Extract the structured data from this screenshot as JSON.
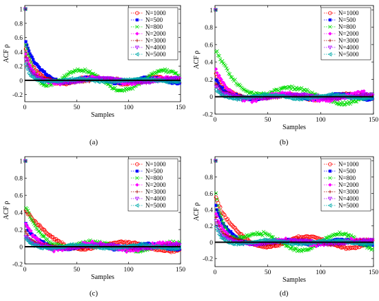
{
  "chart_data": [
    {
      "type": "scatter",
      "panel_label": "(a)",
      "xlabel": "Samples",
      "ylabel": "ACF ρ",
      "xlim": [
        0,
        150
      ],
      "ylim": [
        -0.3,
        1.05
      ],
      "xticks": [
        "0",
        "50",
        "100",
        "150"
      ],
      "yticks": [
        "1",
        "0.8",
        "0.6",
        "0.4",
        "0.2",
        "0",
        "-0.2"
      ],
      "ytick_values": [
        1,
        0.8,
        0.6,
        0.4,
        0.2,
        0,
        -0.2
      ],
      "xtick_values": [
        0,
        50,
        100,
        150
      ],
      "legend": "top-right",
      "zero_line": true,
      "series": [
        {
          "name": "N=1000",
          "color": "#ff0000",
          "marker": "circle",
          "start": 0.5,
          "decay": 7,
          "wave_amp": 0.05,
          "wave_period": 60,
          "wave_phase": 1.0,
          "noise": 0.02
        },
        {
          "name": "N=500",
          "color": "#0000ff",
          "marker": "square",
          "start": 0.6,
          "decay": 10,
          "wave_amp": 0.04,
          "wave_period": 55,
          "wave_phase": 0.5,
          "noise": 0.02
        },
        {
          "name": "N=800",
          "color": "#00dd00",
          "marker": "x",
          "start": 0.55,
          "decay": 9,
          "wave_amp": 0.14,
          "wave_period": 80,
          "wave_phase": 3.6,
          "noise": 0.03
        },
        {
          "name": "N=2000",
          "color": "#ff00ff",
          "marker": "diamond",
          "start": 0.45,
          "decay": 6,
          "wave_amp": 0.04,
          "wave_period": 70,
          "wave_phase": 2.0,
          "noise": 0.03
        },
        {
          "name": "N=3000",
          "color": "#aa0000",
          "marker": "plus",
          "start": 0.4,
          "decay": 5,
          "wave_amp": 0.03,
          "wave_period": 65,
          "wave_phase": 0.2,
          "noise": 0.02
        },
        {
          "name": "N=4000",
          "color": "#aa00ff",
          "marker": "triangle-down",
          "start": 0.35,
          "decay": 5,
          "wave_amp": 0.03,
          "wave_period": 75,
          "wave_phase": 1.5,
          "noise": 0.02
        },
        {
          "name": "N=5000",
          "color": "#00aaaa",
          "marker": "triangle-left",
          "start": 0.3,
          "decay": 4,
          "wave_amp": 0.02,
          "wave_period": 60,
          "wave_phase": 2.5,
          "noise": 0.02
        }
      ]
    },
    {
      "type": "scatter",
      "panel_label": "(b)",
      "xlabel": "Samples",
      "ylabel": "ACF ρ",
      "xlim": [
        0,
        150
      ],
      "ylim": [
        -0.2,
        1.05
      ],
      "xticks": [
        "0",
        "50",
        "100",
        "150"
      ],
      "yticks": [
        "1",
        "0.8",
        "0.6",
        "0.4",
        "0.2",
        "0",
        "-0.2"
      ],
      "ytick_values": [
        1,
        0.8,
        0.6,
        0.4,
        0.2,
        0,
        -0.2
      ],
      "xtick_values": [
        0,
        50,
        100,
        150
      ],
      "legend": "top-right",
      "zero_line": true,
      "series": [
        {
          "name": "N=1000",
          "color": "#ff0000",
          "marker": "circle",
          "start": 0.3,
          "decay": 8,
          "wave_amp": 0.03,
          "wave_period": 60,
          "wave_phase": 1.0,
          "noise": 0.02
        },
        {
          "name": "N=500",
          "color": "#0000ff",
          "marker": "square",
          "start": 0.25,
          "decay": 6,
          "wave_amp": 0.03,
          "wave_period": 55,
          "wave_phase": 0.5,
          "noise": 0.02
        },
        {
          "name": "N=800",
          "color": "#00dd00",
          "marker": "x",
          "start": 0.55,
          "decay": 22,
          "wave_amp": 0.08,
          "wave_period": 90,
          "wave_phase": 2.6,
          "noise": 0.03
        },
        {
          "name": "N=2000",
          "color": "#ff00ff",
          "marker": "diamond",
          "start": 0.35,
          "decay": 9,
          "wave_amp": 0.04,
          "wave_period": 70,
          "wave_phase": 2.0,
          "noise": 0.04
        },
        {
          "name": "N=3000",
          "color": "#aa0000",
          "marker": "plus",
          "start": 0.2,
          "decay": 5,
          "wave_amp": 0.02,
          "wave_period": 65,
          "wave_phase": 0.2,
          "noise": 0.02
        },
        {
          "name": "N=4000",
          "color": "#aa00ff",
          "marker": "triangle-down",
          "start": 0.15,
          "decay": 5,
          "wave_amp": 0.02,
          "wave_period": 75,
          "wave_phase": 1.5,
          "noise": 0.02
        },
        {
          "name": "N=5000",
          "color": "#00aaaa",
          "marker": "triangle-left",
          "start": 0.1,
          "decay": 4,
          "wave_amp": 0.02,
          "wave_period": 60,
          "wave_phase": 2.5,
          "noise": 0.02
        }
      ]
    },
    {
      "type": "scatter",
      "panel_label": "(c)",
      "xlabel": "Samples",
      "ylabel": "ACF ρ",
      "xlim": [
        0,
        150
      ],
      "ylim": [
        -0.2,
        1.05
      ],
      "xticks": [
        "0",
        "50",
        "100",
        "150"
      ],
      "yticks": [
        "1",
        "0.8",
        "0.6",
        "0.4",
        "0.2",
        "0",
        "-0.2"
      ],
      "ytick_values": [
        1,
        0.8,
        0.6,
        0.4,
        0.2,
        0,
        -0.2
      ],
      "xtick_values": [
        0,
        50,
        100,
        150
      ],
      "legend": "top-right",
      "zero_line": true,
      "series": [
        {
          "name": "N=1000",
          "color": "#ff0000",
          "marker": "circle",
          "start": 0.45,
          "decay": 18,
          "wave_amp": 0.05,
          "wave_period": 90,
          "wave_phase": 1.2,
          "noise": 0.02
        },
        {
          "name": "N=500",
          "color": "#0000ff",
          "marker": "square",
          "start": 0.3,
          "decay": 8,
          "wave_amp": 0.03,
          "wave_period": 55,
          "wave_phase": 0.5,
          "noise": 0.02
        },
        {
          "name": "N=800",
          "color": "#00dd00",
          "marker": "x",
          "start": 0.5,
          "decay": 15,
          "wave_amp": 0.05,
          "wave_period": 80,
          "wave_phase": 2.6,
          "noise": 0.03
        },
        {
          "name": "N=2000",
          "color": "#ff00ff",
          "marker": "diamond",
          "start": 0.3,
          "decay": 9,
          "wave_amp": 0.04,
          "wave_period": 70,
          "wave_phase": 2.0,
          "noise": 0.04
        },
        {
          "name": "N=3000",
          "color": "#aa0000",
          "marker": "plus",
          "start": 0.2,
          "decay": 6,
          "wave_amp": 0.02,
          "wave_period": 65,
          "wave_phase": 0.2,
          "noise": 0.02
        },
        {
          "name": "N=4000",
          "color": "#aa00ff",
          "marker": "triangle-down",
          "start": 0.15,
          "decay": 5,
          "wave_amp": 0.02,
          "wave_period": 75,
          "wave_phase": 1.5,
          "noise": 0.02
        },
        {
          "name": "N=5000",
          "color": "#00aaaa",
          "marker": "triangle-left",
          "start": 0.12,
          "decay": 5,
          "wave_amp": 0.02,
          "wave_period": 60,
          "wave_phase": 2.5,
          "noise": 0.02
        }
      ]
    },
    {
      "type": "scatter",
      "panel_label": "(d)",
      "xlabel": "Samples",
      "ylabel": "ACF ρ",
      "xlim": [
        0,
        150
      ],
      "ylim": [
        -0.3,
        1.05
      ],
      "xticks": [
        "0",
        "50",
        "100",
        "150"
      ],
      "yticks": [
        "1",
        "0.8",
        "0.6",
        "0.4",
        "0.2",
        "0",
        "-0.2"
      ],
      "ytick_values": [
        1,
        0.8,
        0.6,
        0.4,
        0.2,
        0,
        -0.2
      ],
      "xtick_values": [
        0,
        50,
        100,
        150
      ],
      "legend": "top-right",
      "zero_line": true,
      "series": [
        {
          "name": "N=1000",
          "color": "#ff0000",
          "marker": "circle",
          "start": 0.6,
          "decay": 12,
          "wave_amp": 0.07,
          "wave_period": 80,
          "wave_phase": 1.0,
          "noise": 0.02
        },
        {
          "name": "N=500",
          "color": "#0000ff",
          "marker": "square",
          "start": 0.5,
          "decay": 9,
          "wave_amp": 0.03,
          "wave_period": 55,
          "wave_phase": 0.5,
          "noise": 0.02
        },
        {
          "name": "N=800",
          "color": "#00dd00",
          "marker": "x",
          "start": 0.65,
          "decay": 10,
          "wave_amp": 0.1,
          "wave_period": 75,
          "wave_phase": 4.2,
          "noise": 0.03
        },
        {
          "name": "N=2000",
          "color": "#ff00ff",
          "marker": "diamond",
          "start": 0.4,
          "decay": 8,
          "wave_amp": 0.03,
          "wave_period": 70,
          "wave_phase": 2.0,
          "noise": 0.03
        },
        {
          "name": "N=3000",
          "color": "#aa0000",
          "marker": "plus",
          "start": 0.35,
          "decay": 6,
          "wave_amp": 0.03,
          "wave_period": 65,
          "wave_phase": 0.2,
          "noise": 0.02
        },
        {
          "name": "N=4000",
          "color": "#aa00ff",
          "marker": "triangle-down",
          "start": 0.3,
          "decay": 5,
          "wave_amp": 0.02,
          "wave_period": 75,
          "wave_phase": 1.5,
          "noise": 0.02
        },
        {
          "name": "N=5000",
          "color": "#00aaaa",
          "marker": "triangle-left",
          "start": 0.25,
          "decay": 4,
          "wave_amp": 0.02,
          "wave_period": 60,
          "wave_phase": 2.5,
          "noise": 0.02
        }
      ]
    }
  ]
}
